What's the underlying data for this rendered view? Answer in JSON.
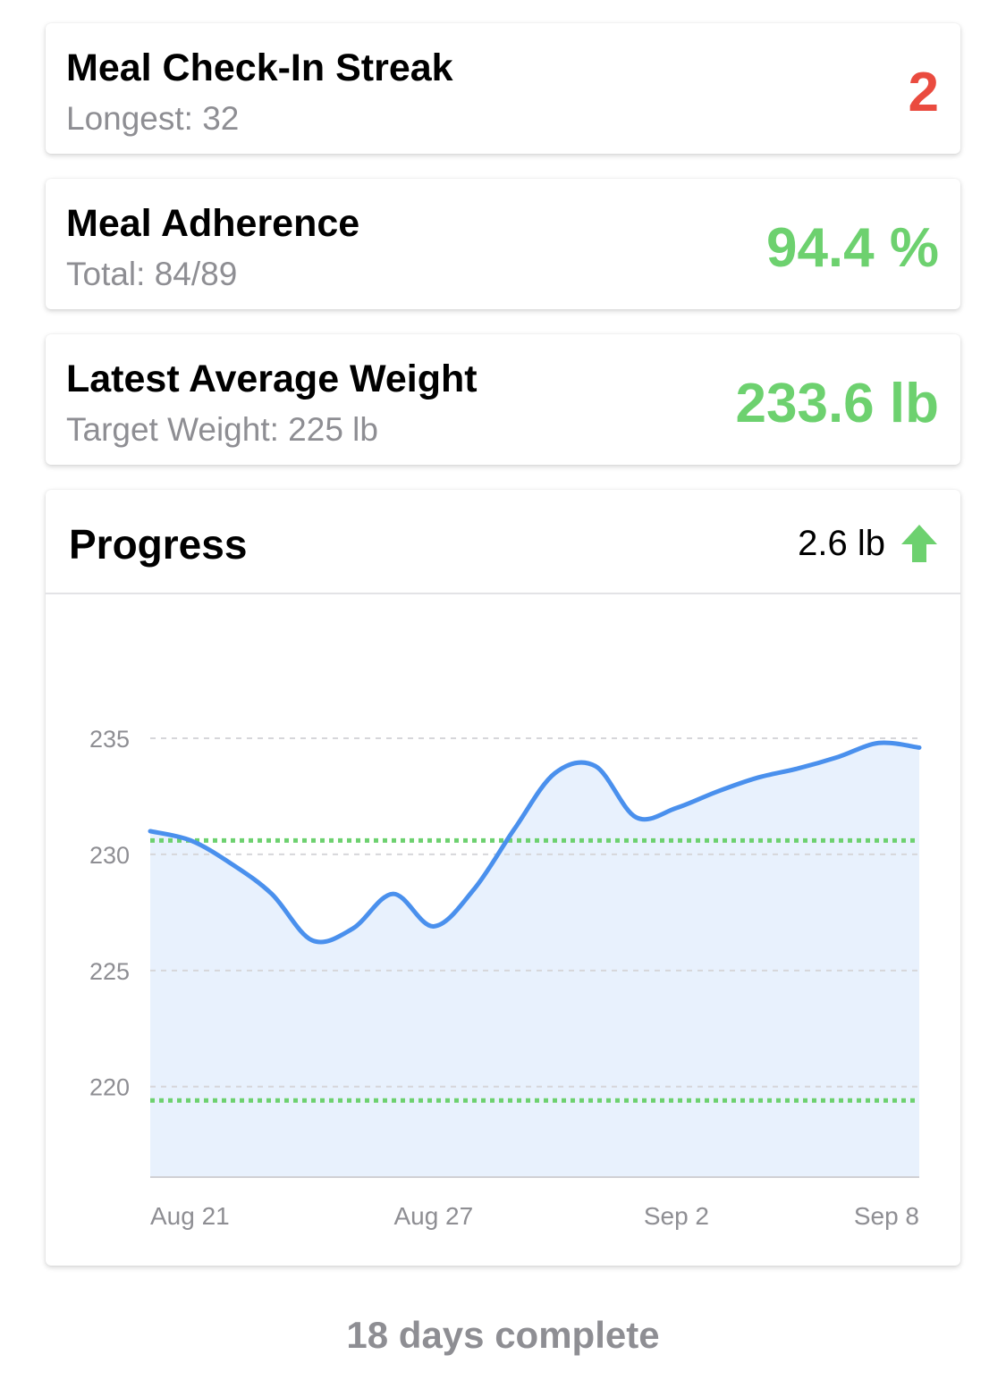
{
  "stats": [
    {
      "title": "Meal Check-In Streak",
      "subtitle": "Longest: 32",
      "value": "2",
      "value_color": "#ea4b3f"
    },
    {
      "title": "Meal Adherence",
      "subtitle": "Total: 84/89",
      "value": "94.4 %",
      "value_color": "#6dd16f"
    },
    {
      "title": "Latest Average Weight",
      "subtitle": "Target Weight: 225 lb",
      "value": "233.6 lb",
      "value_color": "#6dd16f"
    }
  ],
  "progress": {
    "title": "Progress",
    "change": "2.6 lb",
    "change_icon": "arrow-up-icon",
    "change_color": "#6dd16f"
  },
  "chart_data": {
    "type": "area",
    "title": "",
    "xlabel": "",
    "ylabel": "",
    "x_ticks": [
      "Aug 21",
      "Aug 27",
      "Sep 2",
      "Sep 8"
    ],
    "y_ticks": [
      235,
      230,
      225,
      220
    ],
    "ylim": [
      216.1,
      241.2
    ],
    "grid": true,
    "line_color": "#4a90ed",
    "fill_color": "#e8f1fd",
    "series": [
      {
        "dates": [
          "Aug 20",
          "Aug 21",
          "Aug 22",
          "Aug 23",
          "Aug 24",
          "Aug 25",
          "Aug 26",
          "Aug 27",
          "Aug 28",
          "Aug 29",
          "Aug 30",
          "Aug 31",
          "Sep 1",
          "Sep 2",
          "Sep 3",
          "Sep 4",
          "Sep 5",
          "Sep 6",
          "Sep 7",
          "Sep 8"
        ],
        "values": [
          231.0,
          230.6,
          229.6,
          228.3,
          226.3,
          226.8,
          228.3,
          226.9,
          228.5,
          231.1,
          233.5,
          233.8,
          231.6,
          232.0,
          232.7,
          233.3,
          233.7,
          234.2,
          234.8,
          234.6
        ]
      }
    ],
    "reference_lines": [
      {
        "y": 230.6,
        "color": "#6dd16f"
      },
      {
        "y": 219.4,
        "color": "#6dd16f"
      }
    ]
  },
  "footer": {
    "text": "18 days complete"
  }
}
